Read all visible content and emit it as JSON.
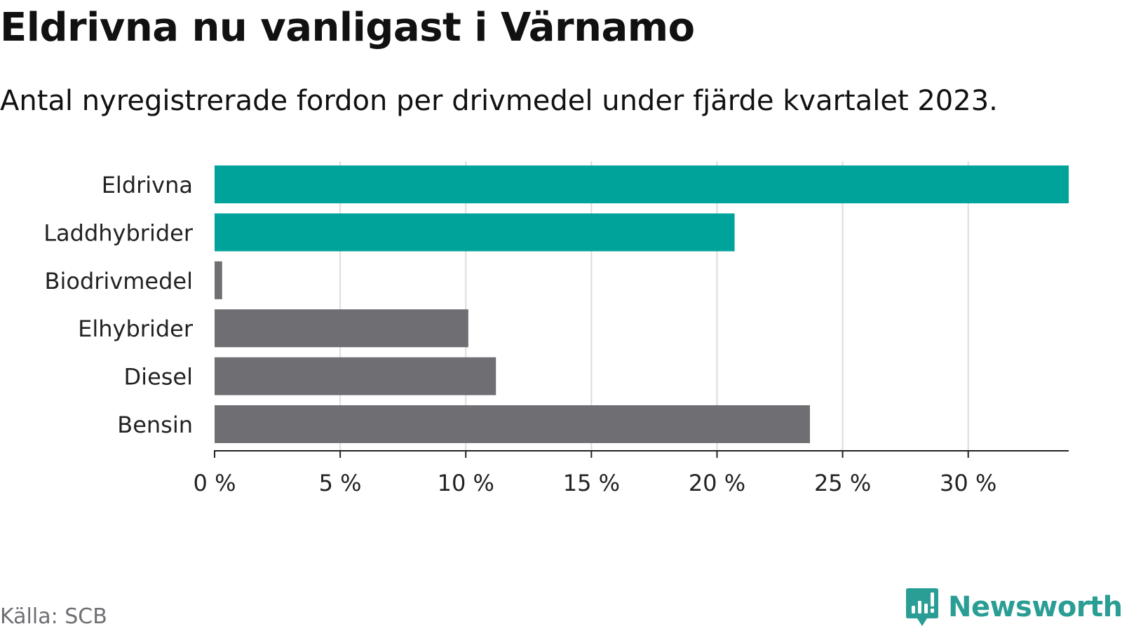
{
  "title": "Eldrivna nu vanligast i Värnamo",
  "subtitle": "Antal nyregistrerade fordon per drivmedel under fjärde kvartalet 2023.",
  "source": "Källa: SCB",
  "brand": {
    "name": "Newsworthy",
    "logo_icon": "newsworthy-chart-bubble-icon",
    "color": "#2a9d94"
  },
  "colors": {
    "highlight": "#00a39a",
    "default": "#6f6e73",
    "grid": "#dcdcdc",
    "axis": "#222222"
  },
  "chart_data": {
    "type": "bar",
    "orientation": "horizontal",
    "title": "Eldrivna nu vanligast i Värnamo",
    "subtitle": "Antal nyregistrerade fordon per drivmedel under fjärde kvartalet 2023.",
    "categories": [
      "Eldrivna",
      "Laddhybrider",
      "Biodrivmedel",
      "Elhybrider",
      "Diesel",
      "Bensin"
    ],
    "values": [
      34.0,
      20.7,
      0.3,
      10.1,
      11.2,
      23.7
    ],
    "highlighted": [
      true,
      true,
      false,
      false,
      false,
      false
    ],
    "unit": "%",
    "xlim": [
      0,
      34
    ],
    "xticks": [
      0,
      5,
      10,
      15,
      20,
      25,
      30
    ],
    "xtick_labels": [
      "0 %",
      "5 %",
      "10 %",
      "15 %",
      "20 %",
      "25 %",
      "30 %"
    ],
    "xlabel": "",
    "ylabel": "",
    "grid": "vertical",
    "legend": "none"
  }
}
